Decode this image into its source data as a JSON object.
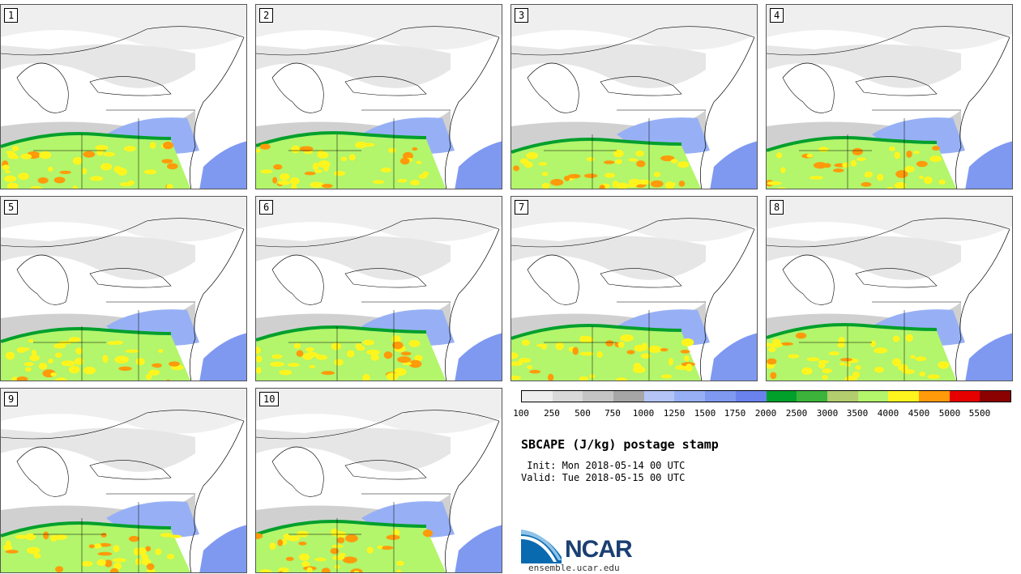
{
  "panels": [
    {
      "label": "1"
    },
    {
      "label": "2"
    },
    {
      "label": "3"
    },
    {
      "label": "4"
    },
    {
      "label": "5"
    },
    {
      "label": "6"
    },
    {
      "label": "7"
    },
    {
      "label": "8"
    },
    {
      "label": "9"
    },
    {
      "label": "10"
    }
  ],
  "colorbar": {
    "colors": [
      "#eeeeee",
      "#d9d9d9",
      "#c4c4c4",
      "#a6a6a6",
      "#b4c4f7",
      "#97b0f5",
      "#7f99f1",
      "#6a82ed",
      "#00a02b",
      "#3cb43c",
      "#b2cc6e",
      "#b3f56b",
      "#fff51e",
      "#ff9a0a",
      "#e60000",
      "#8b0000"
    ],
    "ticks": [
      "100",
      "250",
      "500",
      "750",
      "1000",
      "1250",
      "1500",
      "1750",
      "2000",
      "2500",
      "3000",
      "3500",
      "4000",
      "4500",
      "5000",
      "5500"
    ]
  },
  "title": "SBCAPE (J/kg) postage stamp",
  "init": " Init: Mon 2018-05-14 00 UTC",
  "valid": "Valid: Tue 2018-05-15 00 UTC",
  "logo": {
    "text": "NCAR",
    "site": "ensemble.ucar.edu"
  }
}
